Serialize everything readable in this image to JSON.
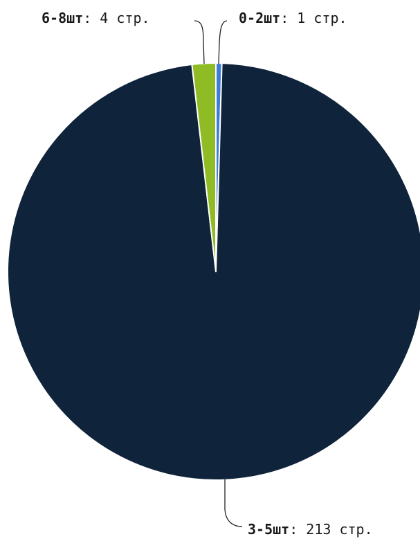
{
  "chart_data": {
    "type": "pie",
    "categories": [
      "0-2шт",
      "3-5шт",
      "6-8шт"
    ],
    "values": [
      1,
      213,
      4
    ],
    "value_labels": [
      ": 1 стр.",
      ": 213 стр.",
      ": 4 стр."
    ],
    "colors": [
      "#3d7dd8",
      "#0f233b",
      "#8fbc24"
    ],
    "slice_border_color": "#ffffff",
    "title": "",
    "legend": "none"
  }
}
